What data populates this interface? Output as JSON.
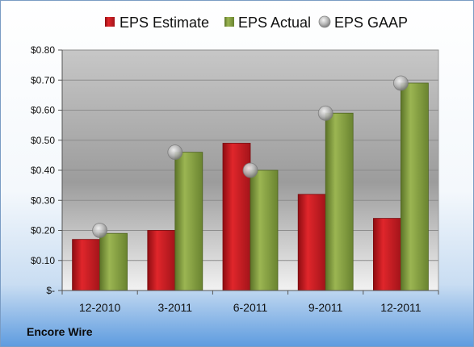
{
  "chart_data": {
    "type": "bar",
    "categories": [
      "12-2010",
      "3-2011",
      "6-2011",
      "9-2011",
      "12-2011"
    ],
    "series": [
      {
        "name": "EPS Estimate",
        "type": "bar",
        "color": "#c0171c",
        "values": [
          0.17,
          0.2,
          0.49,
          0.32,
          0.24
        ]
      },
      {
        "name": "EPS Actual",
        "type": "bar",
        "color": "#7f9a3b",
        "values": [
          0.19,
          0.46,
          0.4,
          0.59,
          0.69
        ]
      },
      {
        "name": "EPS GAAP",
        "type": "scatter",
        "color": "#b8b8b8",
        "values": [
          0.2,
          0.46,
          0.4,
          0.59,
          0.69
        ]
      }
    ],
    "y_ticks": [
      {
        "value": 0.0,
        "label": "$-"
      },
      {
        "value": 0.1,
        "label": "$0.10"
      },
      {
        "value": 0.2,
        "label": "$0.20"
      },
      {
        "value": 0.3,
        "label": "$0.30"
      },
      {
        "value": 0.4,
        "label": "$0.40"
      },
      {
        "value": 0.5,
        "label": "$0.50"
      },
      {
        "value": 0.6,
        "label": "$0.60"
      },
      {
        "value": 0.7,
        "label": "$0.70"
      },
      {
        "value": 0.8,
        "label": "$0.80"
      }
    ],
    "ylim": [
      0,
      0.8
    ],
    "grid": true,
    "legend": "top",
    "company": "Encore Wire"
  }
}
